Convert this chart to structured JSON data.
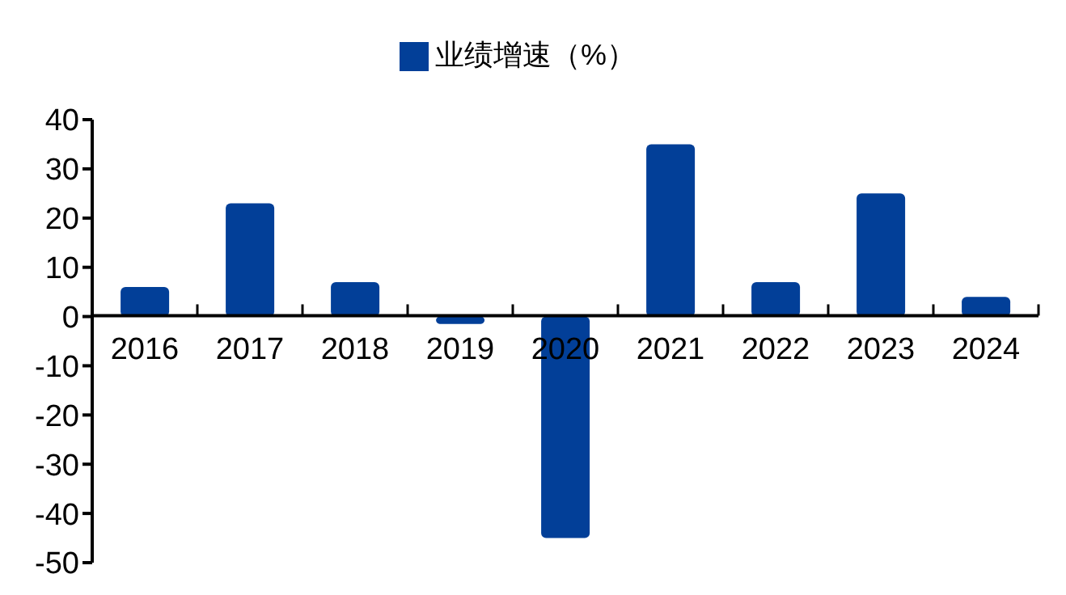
{
  "chart_data": {
    "type": "bar",
    "categories": [
      "2016",
      "2017",
      "2018",
      "2019",
      "2020",
      "2021",
      "2022",
      "2023",
      "2024"
    ],
    "series": [
      {
        "name": "业绩增速（%）",
        "color": "#023f98",
        "values": [
          6,
          23,
          7,
          -1.5,
          -45,
          35,
          7,
          25,
          4
        ]
      }
    ],
    "ylim": [
      -50,
      40
    ],
    "yticks": [
      -50,
      -40,
      -30,
      -20,
      -10,
      0,
      10,
      20,
      30,
      40
    ],
    "grid": false,
    "legend": "top"
  }
}
